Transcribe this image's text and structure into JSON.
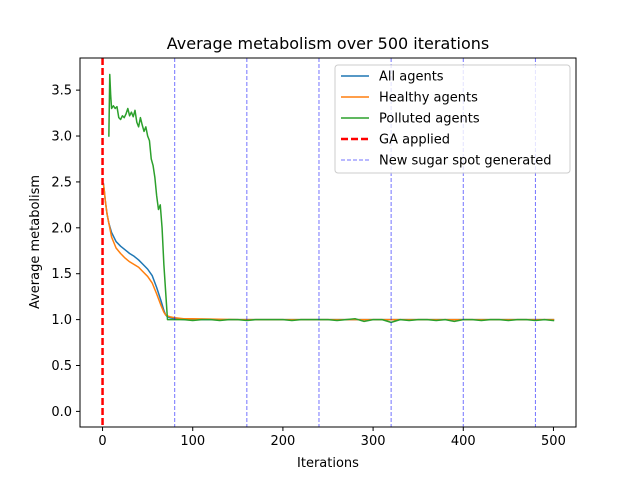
{
  "chart_data": {
    "type": "line",
    "title": "Average metabolism over 500 iterations",
    "xlabel": "Iterations",
    "ylabel": "Average metabolism",
    "xlim": [
      -25,
      525
    ],
    "ylim": [
      -0.17,
      3.85
    ],
    "x_ticks": [
      0,
      100,
      200,
      300,
      400,
      500
    ],
    "y_ticks": [
      0.0,
      0.5,
      1.0,
      1.5,
      2.0,
      2.5,
      3.0,
      3.5
    ],
    "x_tick_labels": [
      "0",
      "100",
      "200",
      "300",
      "400",
      "500"
    ],
    "y_tick_labels": [
      "0.0",
      "0.5",
      "1.0",
      "1.5",
      "2.0",
      "2.5",
      "3.0",
      "3.5"
    ],
    "grid": false,
    "legend_position": "upper right",
    "series": [
      {
        "name": "All agents",
        "color": "#1f77b4",
        "x": [
          1,
          2,
          3,
          5,
          7,
          10,
          15,
          20,
          25,
          30,
          35,
          40,
          45,
          50,
          55,
          60,
          65,
          68,
          70,
          72,
          75,
          80,
          90,
          100,
          150,
          200,
          250,
          300,
          350,
          400,
          450,
          500
        ],
        "y": [
          2.48,
          2.4,
          2.3,
          2.15,
          2.05,
          1.95,
          1.85,
          1.8,
          1.76,
          1.72,
          1.69,
          1.65,
          1.6,
          1.55,
          1.48,
          1.35,
          1.2,
          1.1,
          1.05,
          1.03,
          1.02,
          1.01,
          1.0,
          1.0,
          1.0,
          1.0,
          1.0,
          1.0,
          1.0,
          1.0,
          1.0,
          1.0
        ]
      },
      {
        "name": "Healthy agents",
        "color": "#ff7f0e",
        "x": [
          1,
          2,
          3,
          5,
          7,
          10,
          15,
          20,
          25,
          30,
          35,
          40,
          45,
          50,
          55,
          60,
          65,
          68,
          70,
          72,
          75,
          80,
          90,
          100,
          150,
          200,
          250,
          300,
          350,
          400,
          450,
          500
        ],
        "y": [
          2.47,
          2.4,
          2.3,
          2.15,
          2.05,
          1.9,
          1.78,
          1.72,
          1.67,
          1.63,
          1.6,
          1.57,
          1.52,
          1.47,
          1.4,
          1.28,
          1.15,
          1.08,
          1.05,
          1.04,
          1.03,
          1.02,
          1.01,
          1.01,
          1.0,
          1.0,
          1.0,
          1.0,
          1.0,
          1.0,
          1.0,
          1.0
        ]
      },
      {
        "name": "Polluted agents",
        "color": "#2ca02c",
        "x": [
          7,
          8,
          9,
          10,
          12,
          14,
          16,
          18,
          20,
          22,
          24,
          26,
          28,
          30,
          32,
          34,
          36,
          38,
          40,
          42,
          44,
          46,
          48,
          50,
          52,
          54,
          56,
          58,
          60,
          62,
          64,
          66,
          68,
          70,
          72,
          80,
          90,
          100,
          110,
          120,
          130,
          140,
          150,
          160,
          170,
          180,
          190,
          200,
          210,
          220,
          230,
          240,
          250,
          260,
          270,
          280,
          290,
          300,
          310,
          320,
          330,
          340,
          350,
          360,
          370,
          380,
          390,
          400,
          410,
          420,
          430,
          440,
          450,
          460,
          470,
          480,
          490,
          500
        ],
        "y": [
          3.0,
          3.67,
          3.45,
          3.3,
          3.33,
          3.3,
          3.32,
          3.2,
          3.18,
          3.22,
          3.2,
          3.24,
          3.3,
          3.22,
          3.26,
          3.21,
          3.28,
          3.15,
          3.1,
          3.2,
          3.12,
          3.05,
          3.1,
          3.0,
          2.95,
          2.75,
          2.68,
          2.55,
          2.35,
          2.2,
          2.25,
          2.0,
          1.6,
          1.3,
          1.0,
          1.0,
          1.0,
          0.99,
          1.0,
          1.0,
          0.99,
          1.0,
          1.0,
          0.99,
          1.0,
          1.0,
          1.0,
          1.0,
          0.99,
          1.0,
          1.0,
          1.0,
          1.0,
          0.99,
          1.0,
          1.01,
          0.98,
          1.0,
          1.0,
          0.97,
          1.0,
          0.99,
          1.0,
          1.0,
          0.99,
          1.0,
          0.98,
          1.0,
          1.0,
          0.99,
          1.0,
          1.0,
          0.99,
          1.0,
          1.0,
          0.99,
          1.0,
          0.99
        ]
      }
    ],
    "vertical_lines": [
      {
        "name": "GA applied",
        "color": "#ff0000",
        "style": "thick-dashed",
        "x": [
          0
        ]
      },
      {
        "name": "New sugar spot generated",
        "color": "#0000ff",
        "style": "thin-dashed",
        "x": [
          80,
          160,
          240,
          320,
          400,
          480
        ]
      }
    ],
    "legend": [
      "All agents",
      "Healthy agents",
      "Polluted agents",
      "GA applied",
      "New sugar spot generated"
    ]
  }
}
